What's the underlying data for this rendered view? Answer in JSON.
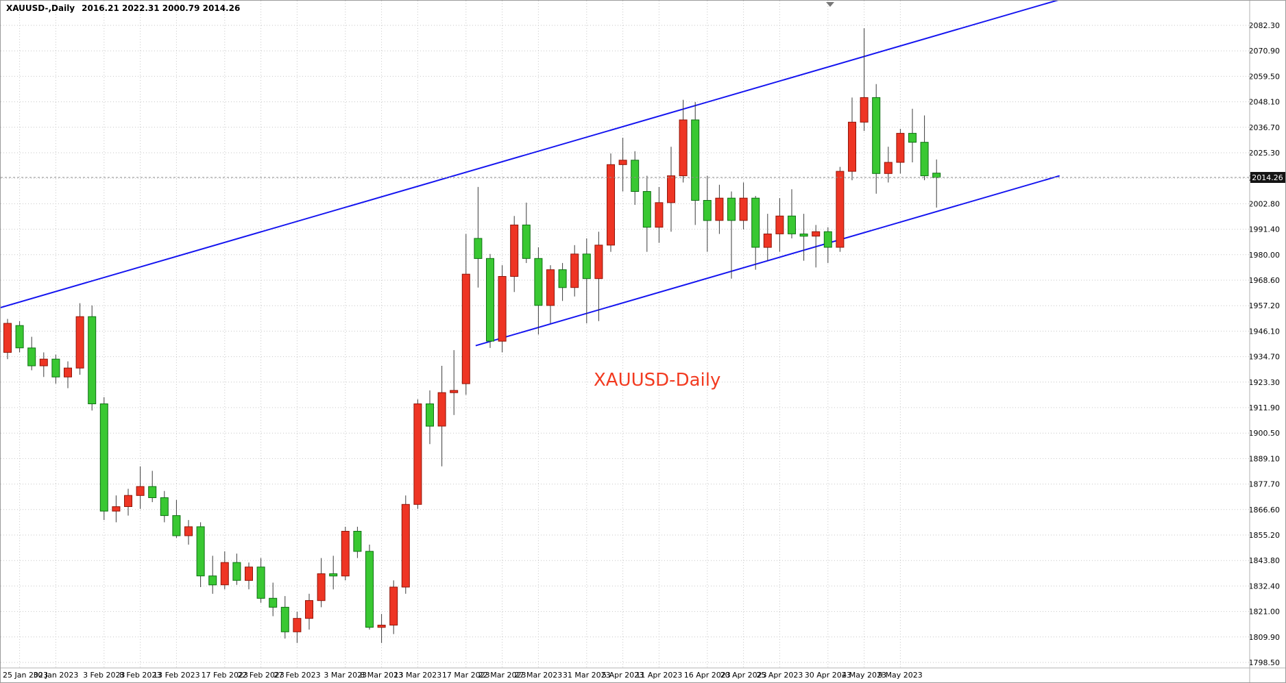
{
  "header": {
    "symbol_timeframe": "XAUUSD-,Daily",
    "ohlc": "2016.21 2022.31 2000.79 2014.26"
  },
  "annotation": {
    "text": "XAUUSD-Daily",
    "color": "#f23a20"
  },
  "price_axis": {
    "labels": [
      "2082.30",
      "2070.90",
      "2059.50",
      "2048.10",
      "2036.70",
      "2025.30",
      "2013.90",
      "2002.80",
      "1991.40",
      "1980.00",
      "1968.60",
      "1957.20",
      "1946.10",
      "1934.70",
      "1923.30",
      "1911.90",
      "1900.50",
      "1889.10",
      "1877.70",
      "1866.60",
      "1855.20",
      "1843.80",
      "1832.40",
      "1821.00",
      "1809.90",
      "1798.50"
    ],
    "current_price": "2014.26"
  },
  "time_axis": {
    "labels": [
      {
        "text": "25 Jan 2023",
        "bar": 1
      },
      {
        "text": "30 Jan 2023",
        "bar": 4
      },
      {
        "text": "3 Feb 2023",
        "bar": 8
      },
      {
        "text": "8 Feb 2023",
        "bar": 11
      },
      {
        "text": "13 Feb 2023",
        "bar": 14
      },
      {
        "text": "17 Feb 2023",
        "bar": 18
      },
      {
        "text": "22 Feb 2023",
        "bar": 21
      },
      {
        "text": "27 Feb 2023",
        "bar": 24
      },
      {
        "text": "3 Mar 2023",
        "bar": 28
      },
      {
        "text": "8 Mar 2023",
        "bar": 31
      },
      {
        "text": "13 Mar 2023",
        "bar": 34
      },
      {
        "text": "17 Mar 2023",
        "bar": 38
      },
      {
        "text": "22 Mar 2023",
        "bar": 41
      },
      {
        "text": "27 Mar 2023",
        "bar": 44
      },
      {
        "text": "31 Mar 2023",
        "bar": 48
      },
      {
        "text": "5 Apr 2023",
        "bar": 51
      },
      {
        "text": "11 Apr 2023",
        "bar": 54
      },
      {
        "text": "16 Apr 2023",
        "bar": 58
      },
      {
        "text": "20 Apr 2023",
        "bar": 61
      },
      {
        "text": "25 Apr 2023",
        "bar": 64
      },
      {
        "text": "30 Apr 2023",
        "bar": 68
      },
      {
        "text": "4 May 2023",
        "bar": 71
      },
      {
        "text": "9 May 2023",
        "bar": 74
      }
    ]
  },
  "chart_data": {
    "type": "candlestick",
    "symbol": "XAUUSD",
    "timeframe": "Daily",
    "title": "XAUUSD-Daily",
    "price_range": {
      "top": 2082.3,
      "bottom": 1798.5,
      "grid_step": 11.4
    },
    "current_price": 2014.26,
    "last_bar_ohlc": {
      "open": 2016.21,
      "high": 2022.31,
      "low": 2000.79,
      "close": 2014.26
    },
    "colors": {
      "up": "#ee3524",
      "up_border": "#8e1408",
      "down": "#39c832",
      "down_border": "#0e6e12",
      "wick": "#3a3a3a",
      "trendline": "#1414f0",
      "grid": "#c6c6c6",
      "price_line": "#8e8e8e",
      "badge_bg": "#141414",
      "badge_text": "#ffffff"
    },
    "candles": [
      [
        1936,
        1951,
        1933,
        1949
      ],
      [
        1948,
        1950,
        1936,
        1938
      ],
      [
        1938,
        1943,
        1928,
        1930
      ],
      [
        1930,
        1936,
        1925,
        1933
      ],
      [
        1933,
        1935,
        1922,
        1925
      ],
      [
        1925,
        1932,
        1920,
        1929
      ],
      [
        1929,
        1958,
        1926,
        1952
      ],
      [
        1952,
        1957,
        1910,
        1913
      ],
      [
        1913,
        1916,
        1861,
        1865
      ],
      [
        1865,
        1872,
        1860,
        1867
      ],
      [
        1867,
        1875,
        1863,
        1872
      ],
      [
        1872,
        1885,
        1866,
        1876
      ],
      [
        1876,
        1883,
        1869,
        1871
      ],
      [
        1871,
        1874,
        1860,
        1863
      ],
      [
        1863,
        1870,
        1853,
        1854
      ],
      [
        1854,
        1861,
        1850,
        1858
      ],
      [
        1858,
        1860,
        1831,
        1836
      ],
      [
        1836,
        1845,
        1828,
        1832
      ],
      [
        1832,
        1847,
        1830,
        1842
      ],
      [
        1842,
        1846,
        1832,
        1834
      ],
      [
        1834,
        1842,
        1830,
        1840
      ],
      [
        1840,
        1844,
        1824,
        1826
      ],
      [
        1826,
        1833,
        1818,
        1822
      ],
      [
        1822,
        1827,
        1808,
        1811
      ],
      [
        1811,
        1820,
        1806,
        1817
      ],
      [
        1817,
        1828,
        1812,
        1825
      ],
      [
        1825,
        1844,
        1822,
        1837
      ],
      [
        1837,
        1845,
        1830,
        1836
      ],
      [
        1836,
        1858,
        1834,
        1856
      ],
      [
        1856,
        1858,
        1844,
        1847
      ],
      [
        1847,
        1850,
        1812,
        1813
      ],
      [
        1813,
        1819,
        1806,
        1814
      ],
      [
        1814,
        1834,
        1810,
        1831
      ],
      [
        1831,
        1872,
        1828,
        1868
      ],
      [
        1868,
        1915,
        1866,
        1913
      ],
      [
        1913,
        1919,
        1895,
        1903
      ],
      [
        1903,
        1930,
        1885,
        1918
      ],
      [
        1918,
        1937,
        1908,
        1919
      ],
      [
        1922,
        1989,
        1917,
        1971
      ],
      [
        1987,
        2010,
        1965,
        1978
      ],
      [
        1978,
        1980,
        1938,
        1941
      ],
      [
        1941,
        1975,
        1936,
        1970
      ],
      [
        1970,
        1997,
        1963,
        1993
      ],
      [
        1993,
        2003,
        1976,
        1978
      ],
      [
        1978,
        1983,
        1944,
        1957
      ],
      [
        1957,
        1975,
        1949,
        1973
      ],
      [
        1973,
        1976,
        1959,
        1965
      ],
      [
        1965,
        1984,
        1961,
        1980
      ],
      [
        1980,
        1987,
        1949,
        1969
      ],
      [
        1969,
        1990,
        1950,
        1984
      ],
      [
        1984,
        2025,
        1981,
        2020
      ],
      [
        2020,
        2032,
        2008,
        2022
      ],
      [
        2022,
        2026,
        2002,
        2008
      ],
      [
        2008,
        2015,
        1981,
        1992
      ],
      [
        1992,
        2010,
        1985,
        2003
      ],
      [
        2003,
        2028,
        1990,
        2015
      ],
      [
        2015,
        2049,
        2012,
        2040
      ],
      [
        2040,
        2048,
        1993,
        2004
      ],
      [
        2004,
        2015,
        1981,
        1995
      ],
      [
        1995,
        2011,
        1989,
        2005
      ],
      [
        2005,
        2008,
        1969,
        1995
      ],
      [
        1995,
        2012,
        1991,
        2005
      ],
      [
        2005,
        2006,
        1973,
        1983
      ],
      [
        1983,
        1998,
        1977,
        1989
      ],
      [
        1989,
        2005,
        1981,
        1997
      ],
      [
        1997,
        2009,
        1987,
        1989
      ],
      [
        1989,
        1998,
        1977,
        1988
      ],
      [
        1988,
        1993,
        1974,
        1990
      ],
      [
        1990,
        1992,
        1976,
        1983
      ],
      [
        1983,
        2019,
        1981,
        2017
      ],
      [
        2017,
        2050,
        2013,
        2039
      ],
      [
        2039,
        2081,
        2035,
        2050
      ],
      [
        2050,
        2056,
        2007,
        2016
      ],
      [
        2016,
        2028,
        2012,
        2021
      ],
      [
        2021,
        2036,
        2016,
        2034
      ],
      [
        2034,
        2045,
        2021,
        2030
      ],
      [
        2030,
        2042,
        2013,
        2015
      ],
      [
        2016.21,
        2022.31,
        2000.79,
        2014.26
      ]
    ],
    "trendlines": [
      {
        "name": "channel-upper",
        "from": {
          "bar": -0.6,
          "price": 1956
        },
        "to": {
          "bar": 88.6,
          "price": 2096
        }
      },
      {
        "name": "channel-lower",
        "from": {
          "bar": 38.8,
          "price": 1939
        },
        "to": {
          "bar": 87.2,
          "price": 2015
        }
      }
    ]
  }
}
